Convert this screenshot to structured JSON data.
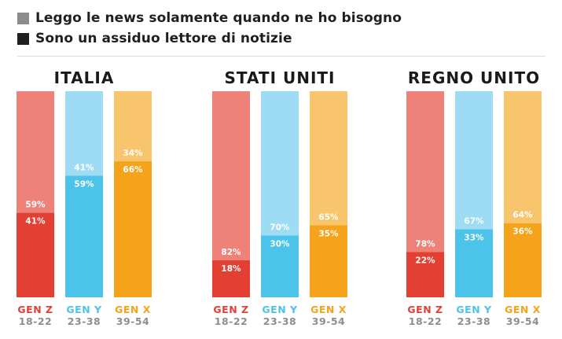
{
  "legend": {
    "items": [
      {
        "label": "Leggo le news solamente quando ne ho bisogno",
        "color": "#8c8c8c"
      },
      {
        "label": "Sono un assiduo lettore di notizie",
        "color": "#1f1f1f"
      }
    ]
  },
  "chart_data": {
    "type": "bar",
    "stacked": true,
    "ylim": [
      0,
      100
    ],
    "grid": false,
    "legend_position": "top-left",
    "stack_order": [
      "Sono un assiduo lettore di notizie",
      "Leggo le news solamente quando ne ho bisogno"
    ],
    "groups": [
      {
        "title": "ITALIA",
        "bars": [
          {
            "gen": "GEN Z",
            "age": "18-22",
            "assiduo": 41,
            "bisogno": 59
          },
          {
            "gen": "GEN Y",
            "age": "23-38",
            "assiduo": 59,
            "bisogno": 41
          },
          {
            "gen": "GEN X",
            "age": "39-54",
            "assiduo": 66,
            "bisogno": 34
          }
        ]
      },
      {
        "title": "STATI UNITI",
        "bars": [
          {
            "gen": "GEN Z",
            "age": "18-22",
            "assiduo": 18,
            "bisogno": 82
          },
          {
            "gen": "GEN Y",
            "age": "23-38",
            "assiduo": 30,
            "bisogno": 70
          },
          {
            "gen": "GEN X",
            "age": "39-54",
            "assiduo": 35,
            "bisogno": 65
          }
        ]
      },
      {
        "title": "REGNO UNITO",
        "bars": [
          {
            "gen": "GEN Z",
            "age": "18-22",
            "assiduo": 22,
            "bisogno": 78
          },
          {
            "gen": "GEN Y",
            "age": "23-38",
            "assiduo": 33,
            "bisogno": 67
          },
          {
            "gen": "GEN X",
            "age": "39-54",
            "assiduo": 36,
            "bisogno": 64
          }
        ]
      }
    ],
    "colors": {
      "GEN Z": {
        "assiduo": "#e43f33",
        "bisogno": "#ee8279",
        "label": "#e43f33"
      },
      "GEN Y": {
        "assiduo": "#4cc3ea",
        "bisogno": "#9edcf3",
        "label": "#4cc3ea"
      },
      "GEN X": {
        "assiduo": "#f5a31b",
        "bisogno": "#f8c56d",
        "label": "#f5a31b"
      }
    }
  }
}
